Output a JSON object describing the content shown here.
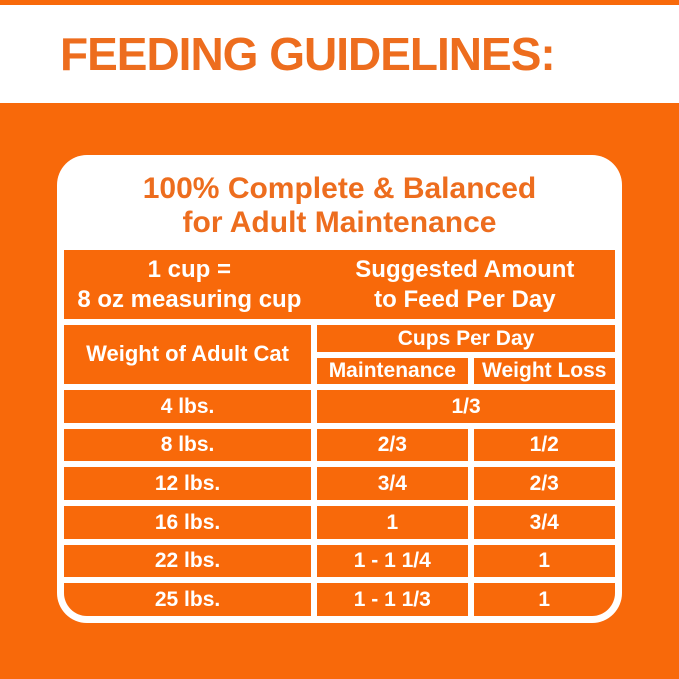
{
  "colors": {
    "page_orange": "#F8690A",
    "heading_orange": "#ED6D1E",
    "table_text_white": "#FFFFFF"
  },
  "header": {
    "title": "FEEDING GUIDELINES:"
  },
  "panel": {
    "title_line1": "100% Complete & Balanced",
    "title_line2": "for Adult Maintenance",
    "cup_info_line1": "1 cup =",
    "cup_info_line2": "8 oz measuring cup",
    "suggested_line1": "Suggested Amount",
    "suggested_line2": "to Feed Per Day",
    "table": {
      "weight_header": "Weight of Adult Cat",
      "group_header": "Cups Per Day",
      "maintenance_header": "Maintenance",
      "weight_loss_header": "Weight Loss",
      "rows": [
        {
          "weight": "4 lbs.",
          "maintenance": "1/3",
          "weight_loss": ""
        },
        {
          "weight": "8 lbs.",
          "maintenance": "2/3",
          "weight_loss": "1/2"
        },
        {
          "weight": "12 lbs.",
          "maintenance": "3/4",
          "weight_loss": "2/3"
        },
        {
          "weight": "16 lbs.",
          "maintenance": "1",
          "weight_loss": "3/4"
        },
        {
          "weight": "22 lbs.",
          "maintenance": "1 - 1 1/4",
          "weight_loss": "1"
        },
        {
          "weight": "25 lbs.",
          "maintenance": "1 - 1 1/3",
          "weight_loss": "1"
        }
      ]
    }
  }
}
